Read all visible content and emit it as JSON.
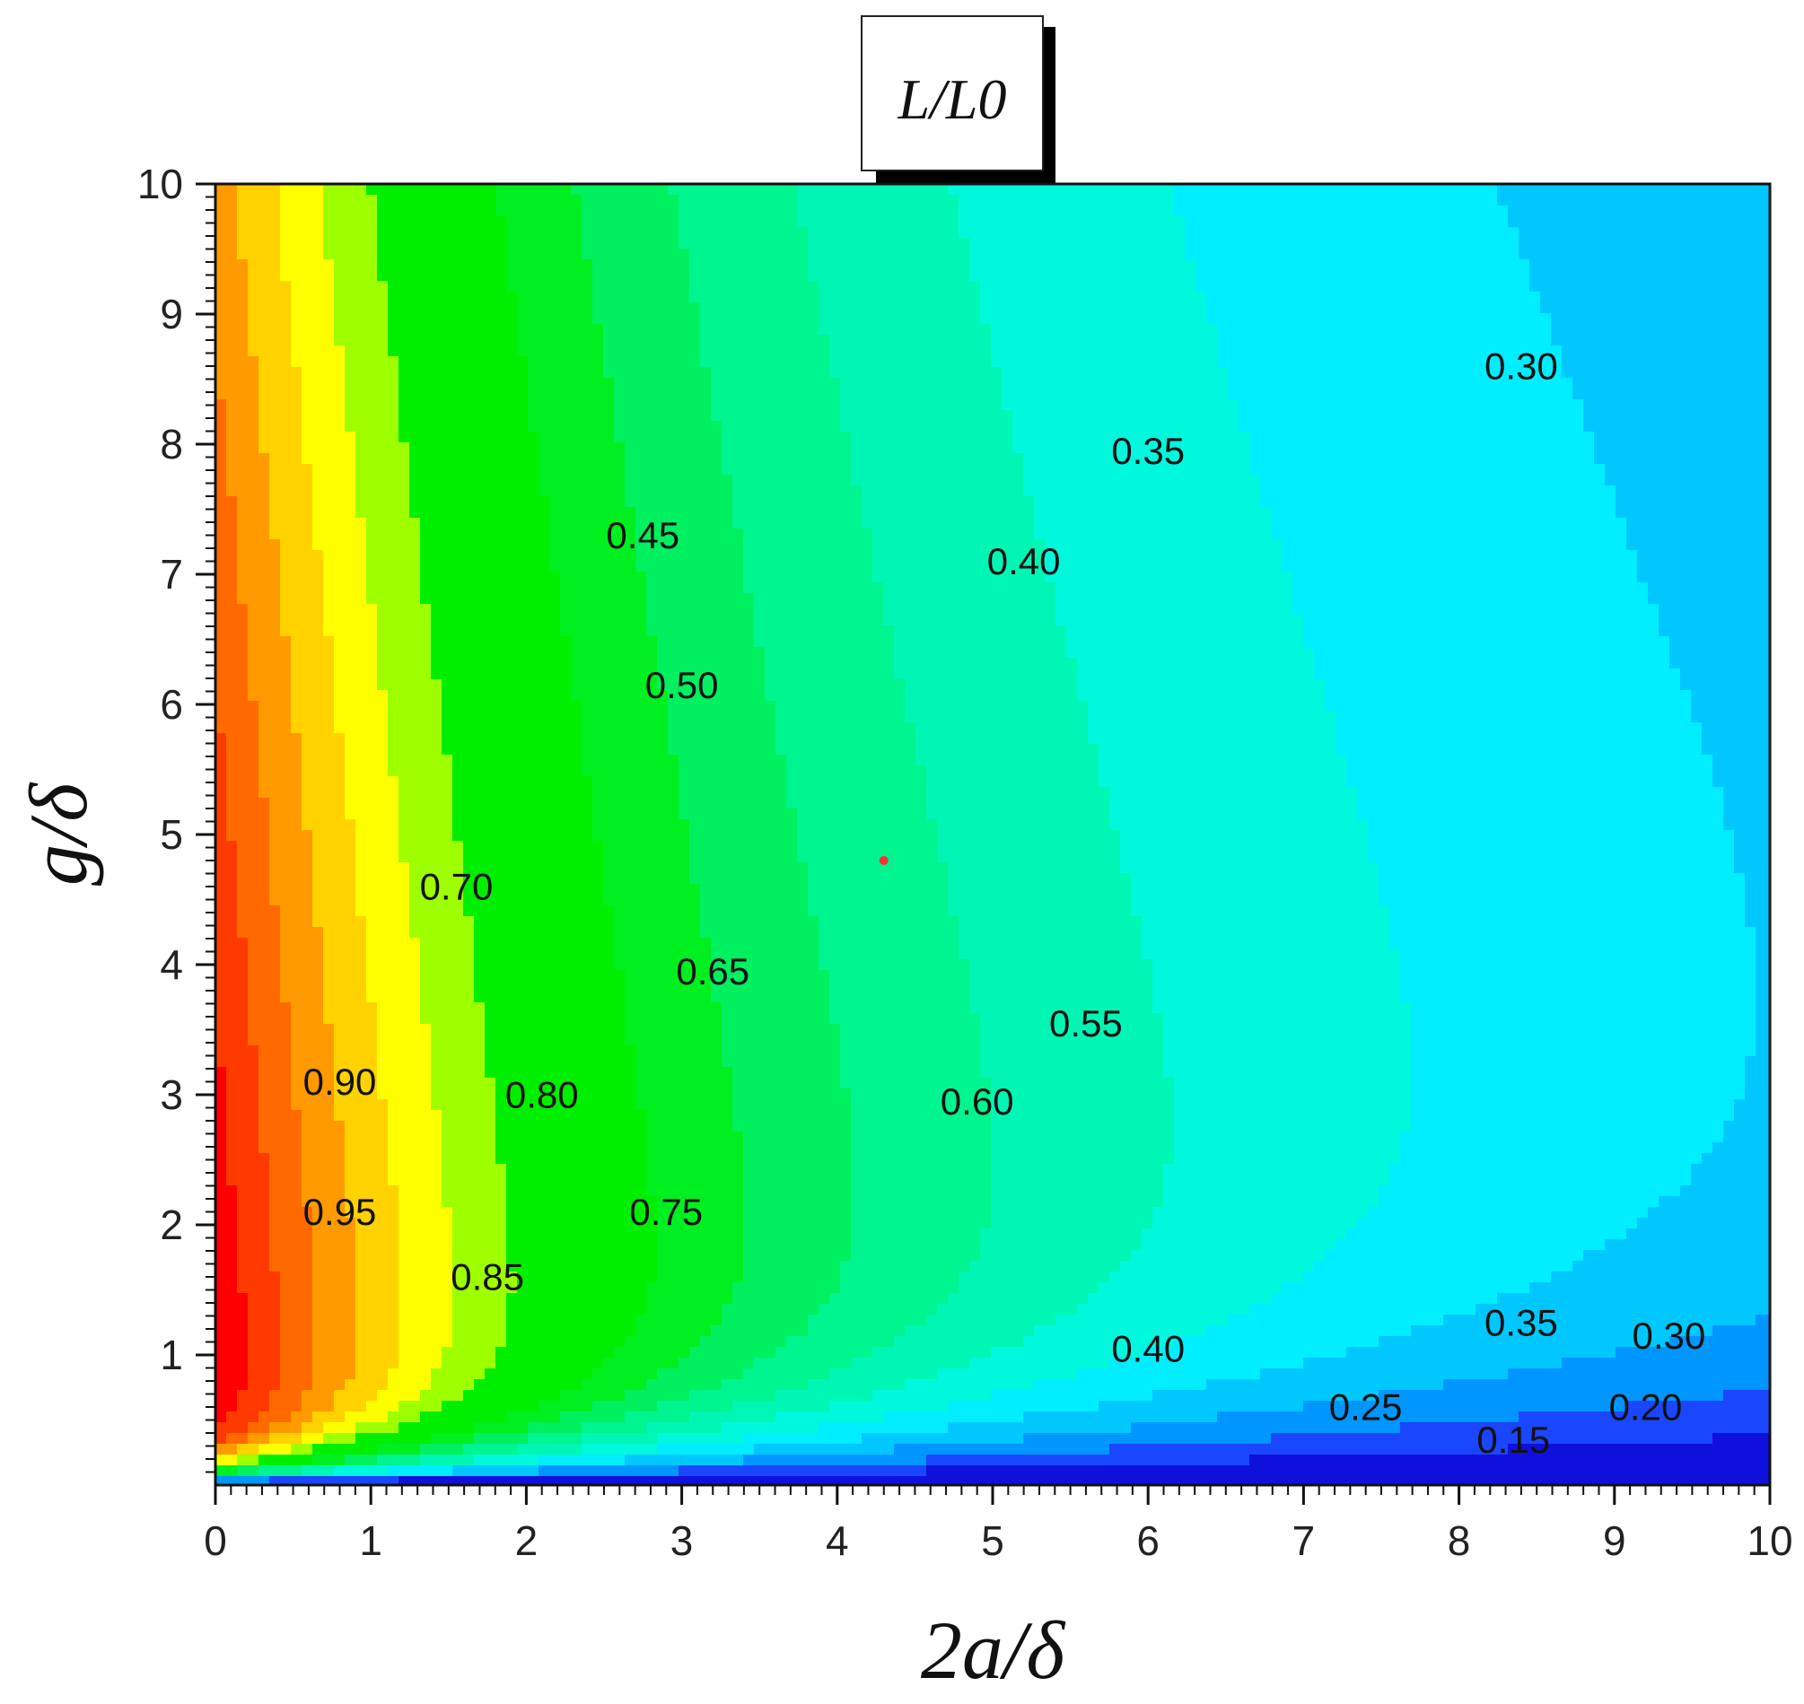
{
  "chart_data": {
    "type": "contour",
    "title": "L/L0",
    "xlabel": "2a/δ",
    "ylabel": "g/δ",
    "xlim": [
      0,
      10
    ],
    "ylim": [
      0,
      10
    ],
    "x_ticks": [
      "0",
      "1",
      "2",
      "3",
      "4",
      "5",
      "6",
      "7",
      "8",
      "9",
      "10"
    ],
    "y_ticks": [
      "1",
      "2",
      "3",
      "4",
      "5",
      "6",
      "7",
      "8",
      "9",
      "10"
    ],
    "grid": false,
    "colors": {
      "0.95": "#ff0000",
      "0.90": "#ff3a00",
      "0.85": "#ff6a00",
      "0.80": "#ff9a00",
      "0.75": "#ffd200",
      "0.70": "#ffff00",
      "0.65": "#9eff00",
      "0.60": "#00ee00",
      "0.55": "#00ee00",
      "0.50": "#00ef20",
      "0.45": "#00f060",
      "0.40": "#00f490",
      "0.35": "#00f6b4",
      "0.30": "#00f8dc",
      "0.25": "#00eeff",
      "0.20": "#00c8ff",
      "0.15": "#0096ff",
      "0.10": "#1a46ff",
      "0.05": "#1010dd"
    },
    "contour_labels": [
      {
        "text": "0.95",
        "x": 0.8,
        "y": 2.0
      },
      {
        "text": "0.90",
        "x": 0.8,
        "y": 3.0
      },
      {
        "text": "0.85",
        "x": 1.75,
        "y": 1.5
      },
      {
        "text": "0.80",
        "x": 2.1,
        "y": 2.9
      },
      {
        "text": "0.75",
        "x": 2.9,
        "y": 2.0
      },
      {
        "text": "0.70",
        "x": 1.55,
        "y": 4.5
      },
      {
        "text": "0.65",
        "x": 3.2,
        "y": 3.85
      },
      {
        "text": "0.60",
        "x": 4.9,
        "y": 2.85
      },
      {
        "text": "0.55",
        "x": 5.6,
        "y": 3.45
      },
      {
        "text": "0.50",
        "x": 3.0,
        "y": 6.05
      },
      {
        "text": "0.45",
        "x": 2.75,
        "y": 7.2
      },
      {
        "text": "0.40",
        "x": 5.2,
        "y": 7.0
      },
      {
        "text": "0.35",
        "x": 6.0,
        "y": 7.85
      },
      {
        "text": "0.30",
        "x": 8.4,
        "y": 8.5
      },
      {
        "text": "0.40",
        "x": 6.0,
        "y": 0.95
      },
      {
        "text": "0.35",
        "x": 8.4,
        "y": 1.15
      },
      {
        "text": "0.30",
        "x": 9.35,
        "y": 1.05
      },
      {
        "text": "0.25",
        "x": 7.4,
        "y": 0.5
      },
      {
        "text": "0.20",
        "x": 9.2,
        "y": 0.5
      },
      {
        "text": "0.15",
        "x": 8.35,
        "y": 0.25
      }
    ],
    "marker": {
      "x": 4.3,
      "y": 4.8,
      "color": "#ff3030"
    }
  }
}
